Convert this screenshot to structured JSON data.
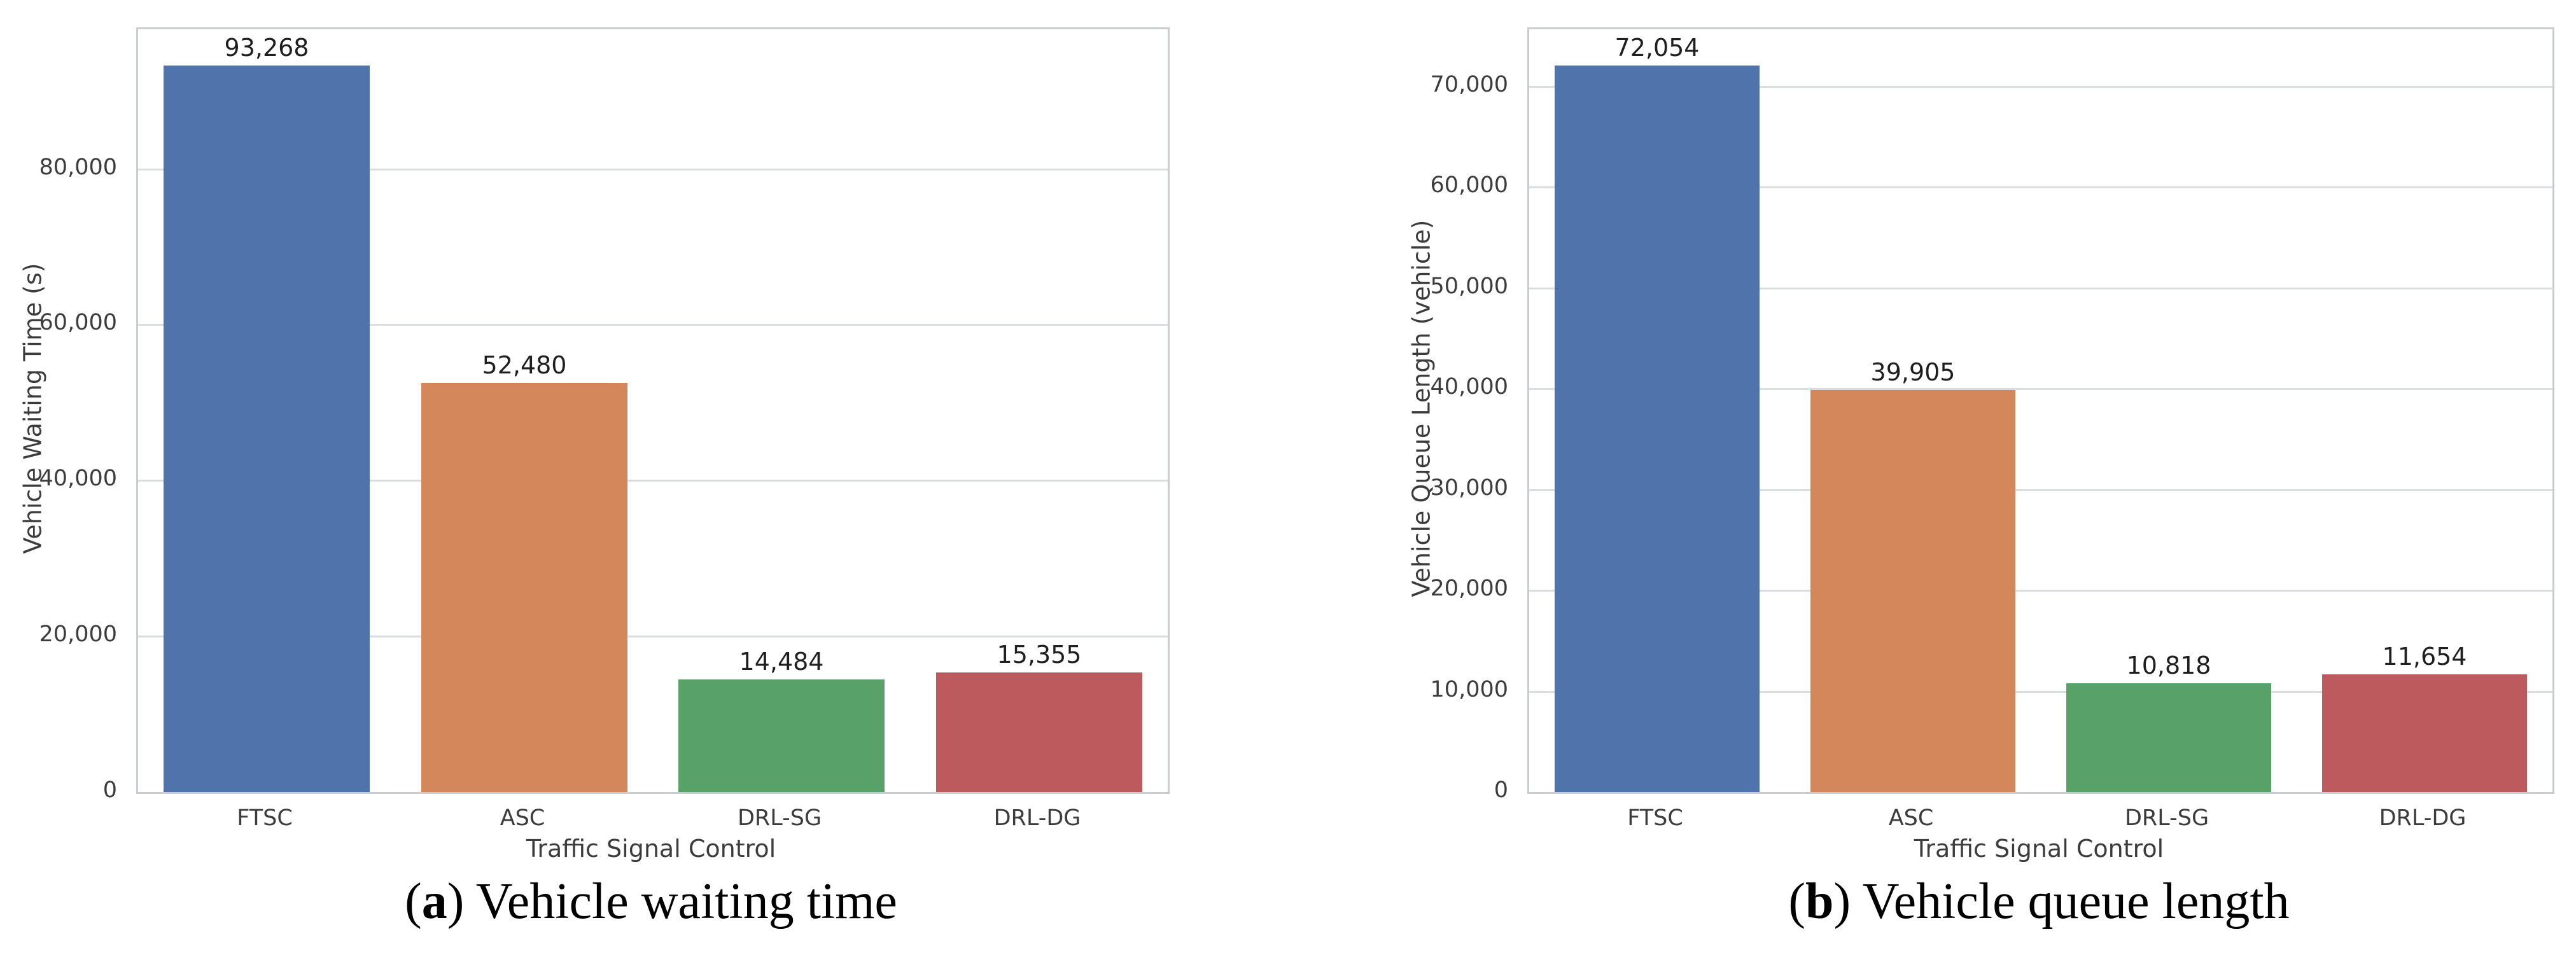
{
  "chart_data": [
    {
      "type": "bar",
      "caption": {
        "open": "(",
        "letter": "a",
        "rest": ") Vehicle waiting time"
      },
      "categories": [
        "FTSC",
        "ASC",
        "DRL-SG",
        "DRL-DG"
      ],
      "values": [
        93268,
        52480,
        14484,
        15355
      ],
      "value_labels": [
        "93,268",
        "52,480",
        "14,484",
        "15,355"
      ],
      "xlabel": "Traffic Signal Control",
      "ylabel": "Vehicle Waiting Time (s)",
      "ylim": [
        0,
        97931
      ],
      "yticks": [
        0,
        20000,
        40000,
        60000,
        80000
      ],
      "ytick_labels": [
        "0",
        "20,000",
        "40,000",
        "60,000",
        "80,000"
      ],
      "bar_colors": [
        "#4F73AA",
        "#D4875A",
        "#58A269",
        "#BC5A5E"
      ],
      "grid": true,
      "legend": "none"
    },
    {
      "type": "bar",
      "caption": {
        "open": "(",
        "letter": "b",
        "rest": ") Vehicle queue length"
      },
      "categories": [
        "FTSC",
        "ASC",
        "DRL-SG",
        "DRL-DG"
      ],
      "values": [
        72054,
        39905,
        10818,
        11654
      ],
      "value_labels": [
        "72,054",
        "39,905",
        "10,818",
        "11,654"
      ],
      "xlabel": "Traffic Signal Control",
      "ylabel": "Vehicle Queue Length (vehicle)",
      "ylim": [
        0,
        75657
      ],
      "yticks": [
        0,
        10000,
        20000,
        30000,
        40000,
        50000,
        60000,
        70000
      ],
      "ytick_labels": [
        "0",
        "10,000",
        "20,000",
        "30,000",
        "40,000",
        "50,000",
        "60,000",
        "70,000"
      ],
      "bar_colors": [
        "#4F73AA",
        "#D4875A",
        "#58A269",
        "#BC5A5E"
      ],
      "grid": true,
      "legend": "none"
    }
  ]
}
